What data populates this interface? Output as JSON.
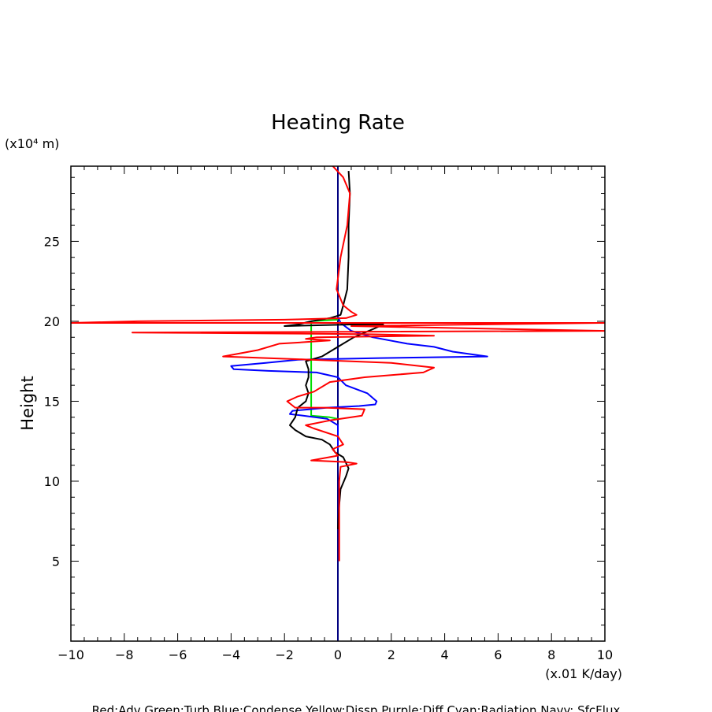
{
  "chart_data": {
    "type": "line",
    "title": "Heating Rate",
    "ylabel": "Height",
    "yunit": "(x10⁴ m)",
    "xunit": "(x.01 K/day)",
    "xlim": [
      -10,
      10
    ],
    "ylim": [
      0,
      29.7
    ],
    "xticks": [
      -10,
      -8,
      -6,
      -4,
      -2,
      0,
      2,
      4,
      6,
      8,
      10
    ],
    "yticks": [
      5,
      10,
      15,
      20,
      25
    ],
    "legend_text": "Red:Adv  Green:Turb  Blue:Condense  Yellow:Dissp  Purple:Diff  Cyan:Radiation  Navy: SfcFlux",
    "grid": false,
    "series": [
      {
        "name": "Navy: SfcFlux",
        "color": "#000080",
        "points": [
          [
            0,
            0
          ],
          [
            0,
            29.7
          ]
        ]
      },
      {
        "name": "Green:Turb",
        "color": "#00dd00",
        "points": [
          [
            0,
            20.1
          ],
          [
            -1.0,
            20.0
          ],
          [
            -1.0,
            19.9
          ],
          [
            -1.0,
            17.5
          ],
          [
            -1.0,
            14.5
          ],
          [
            -1.0,
            14.1
          ],
          [
            -0.3,
            14.0
          ],
          [
            0,
            13.9
          ]
        ]
      },
      {
        "name": "Blue:Condense",
        "color": "#0000ff",
        "points": [
          [
            0,
            20.3
          ],
          [
            0.1,
            19.9
          ],
          [
            0.5,
            19.4
          ],
          [
            1.3,
            19.0
          ],
          [
            2.6,
            18.6
          ],
          [
            3.6,
            18.4
          ],
          [
            4.3,
            18.1
          ],
          [
            5.6,
            17.8
          ],
          [
            1.6,
            17.7
          ],
          [
            -1.5,
            17.6
          ],
          [
            -2.7,
            17.4
          ],
          [
            -4.0,
            17.2
          ],
          [
            -3.9,
            17.0
          ],
          [
            -2.6,
            16.9
          ],
          [
            -0.8,
            16.8
          ],
          [
            0,
            16.5
          ],
          [
            0.3,
            16.0
          ],
          [
            1.1,
            15.5
          ],
          [
            1.45,
            15.0
          ],
          [
            1.4,
            14.8
          ],
          [
            0.8,
            14.7
          ],
          [
            -0.4,
            14.6
          ],
          [
            -1.7,
            14.4
          ],
          [
            -1.8,
            14.2
          ],
          [
            -1.3,
            14.1
          ],
          [
            -0.4,
            13.9
          ],
          [
            -0.2,
            13.7
          ],
          [
            0,
            13.5
          ],
          [
            0,
            12.0
          ]
        ]
      },
      {
        "name": "Black",
        "color": "#000000",
        "points": [
          [
            0.4,
            29.4
          ],
          [
            0.45,
            28.0
          ],
          [
            0.4,
            26.0
          ],
          [
            0.4,
            24.0
          ],
          [
            0.35,
            22.0
          ],
          [
            0.2,
            21.0
          ],
          [
            0.1,
            20.4
          ],
          [
            -0.3,
            20.2
          ],
          [
            -1.0,
            20.0
          ],
          [
            -1.5,
            19.8
          ],
          [
            -2.0,
            19.7
          ],
          [
            0.5,
            19.8
          ],
          [
            1.7,
            19.8
          ],
          [
            1.3,
            19.5
          ],
          [
            0.6,
            19.0
          ],
          [
            0.0,
            18.4
          ],
          [
            -0.6,
            17.8
          ],
          [
            -1.2,
            17.5
          ],
          [
            -1.1,
            17.0
          ],
          [
            -1.1,
            16.5
          ],
          [
            -1.2,
            16.0
          ],
          [
            -1.1,
            15.5
          ],
          [
            -1.2,
            15.0
          ],
          [
            -1.5,
            14.6
          ],
          [
            -1.6,
            14.0
          ],
          [
            -1.8,
            13.5
          ],
          [
            -1.6,
            13.2
          ],
          [
            -1.2,
            12.8
          ],
          [
            -0.6,
            12.6
          ],
          [
            -0.3,
            12.3
          ],
          [
            -0.1,
            11.8
          ],
          [
            0.2,
            11.5
          ],
          [
            0.4,
            10.8
          ],
          [
            0.3,
            10.3
          ],
          [
            0.1,
            9.5
          ],
          [
            0.05,
            8.5
          ],
          [
            0.0,
            7.0
          ]
        ]
      },
      {
        "name": "Red:Adv",
        "color": "#ff0000",
        "points": [
          [
            -0.3,
            29.9
          ],
          [
            0.2,
            29.0
          ],
          [
            0.45,
            28.0
          ],
          [
            0.35,
            26.0
          ],
          [
            0.1,
            24.0
          ],
          [
            -0.05,
            22.0
          ],
          [
            0.2,
            21.0
          ],
          [
            0.5,
            20.6
          ],
          [
            0.7,
            20.4
          ],
          [
            0.3,
            20.2
          ],
          [
            -2.0,
            20.1
          ],
          [
            -7.5,
            20.0
          ],
          [
            -10.0,
            19.9
          ],
          [
            10.0,
            19.9
          ],
          [
            0.5,
            19.7
          ],
          [
            10.0,
            19.4
          ],
          [
            -7.7,
            19.3
          ],
          [
            1.0,
            19.2
          ],
          [
            3.6,
            19.1
          ],
          [
            -0.8,
            19.0
          ],
          [
            -1.2,
            18.9
          ],
          [
            -0.3,
            18.8
          ],
          [
            -1.2,
            18.7
          ],
          [
            -2.2,
            18.6
          ],
          [
            -3.0,
            18.2
          ],
          [
            -4.3,
            17.8
          ],
          [
            -1.0,
            17.6
          ],
          [
            2.0,
            17.4
          ],
          [
            3.6,
            17.1
          ],
          [
            3.2,
            16.8
          ],
          [
            1.0,
            16.5
          ],
          [
            -0.3,
            16.2
          ],
          [
            -0.9,
            15.6
          ],
          [
            -1.5,
            15.3
          ],
          [
            -1.9,
            15.0
          ],
          [
            -1.6,
            14.6
          ],
          [
            -0.5,
            14.6
          ],
          [
            1.0,
            14.5
          ],
          [
            0.9,
            14.1
          ],
          [
            -0.3,
            13.8
          ],
          [
            -1.2,
            13.5
          ],
          [
            -0.9,
            13.3
          ],
          [
            0,
            12.8
          ],
          [
            0.2,
            12.3
          ],
          [
            -0.2,
            12.0
          ],
          [
            0,
            11.6
          ],
          [
            -1.0,
            11.3
          ],
          [
            0.3,
            11.2
          ],
          [
            0.7,
            11.1
          ],
          [
            0.1,
            10.9
          ],
          [
            0.05,
            10.0
          ],
          [
            0.05,
            8.0
          ],
          [
            0.05,
            5.0
          ]
        ]
      }
    ]
  }
}
